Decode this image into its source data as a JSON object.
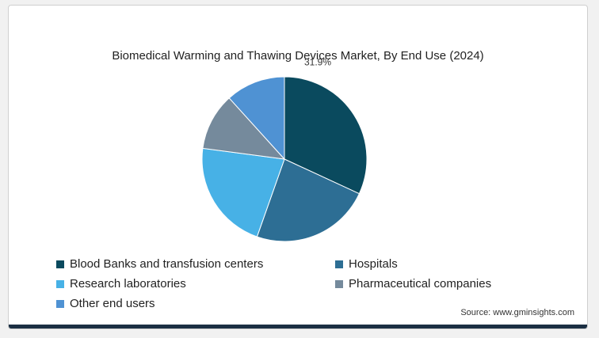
{
  "chart_data": {
    "type": "pie",
    "title": "Biomedical Warming and Thawing Devices Market, By End Use (2024)",
    "categories": [
      "Blood Banks and transfusion centers",
      "Hospitals",
      "Research laboratories",
      "Pharmaceutical companies",
      "Other end users"
    ],
    "values": [
      31.9,
      23.5,
      21.7,
      11.2,
      11.7
    ],
    "colors": [
      "#0a4a5e",
      "#2d6e94",
      "#47b1e6",
      "#758a9c",
      "#4f92d3"
    ],
    "data_labels": [
      "31.9%",
      "",
      "",
      "",
      ""
    ],
    "legend_position": "bottom"
  },
  "source": "Source: www.gminsights.com"
}
